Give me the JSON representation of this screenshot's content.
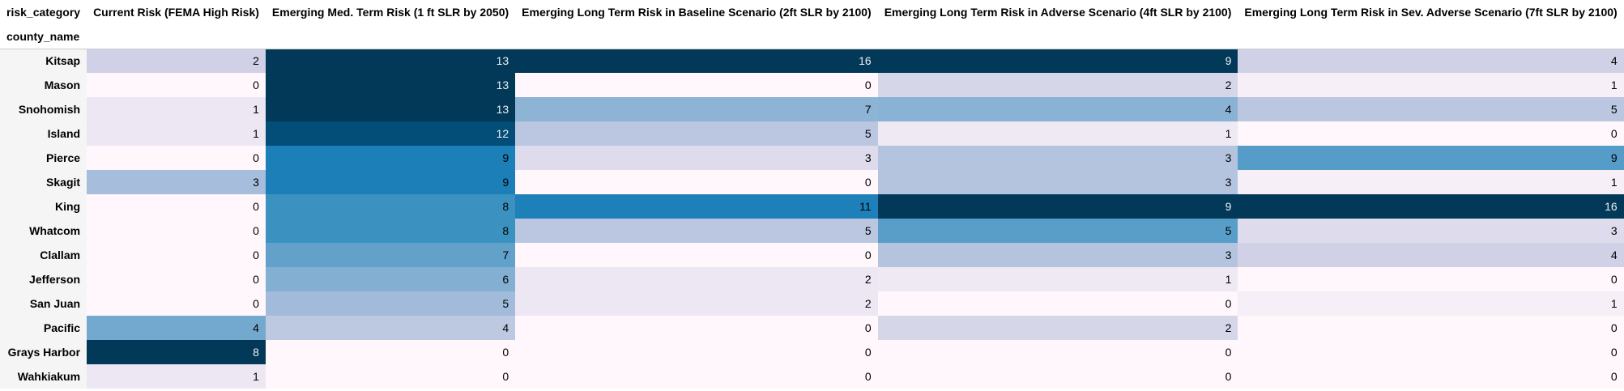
{
  "table": {
    "columns_name_label": "risk_category",
    "index_name_label": "county_name",
    "columns": [
      "Current Risk (FEMA High Risk)",
      "Emerging Med. Term Risk (1 ft SLR by 2050)",
      "Emerging Long Term Risk in Baseline Scenario (2ft SLR by 2100)",
      "Emerging Long Term Risk in Adverse Scenario (4ft SLR by 2100)",
      "Emerging Long Term Risk in Sev. Adverse Scenario (7ft SLR by 2100)"
    ],
    "rows": [
      {
        "county": "Kitsap",
        "values": [
          2,
          13,
          16,
          9,
          4
        ]
      },
      {
        "county": "Mason",
        "values": [
          0,
          13,
          0,
          2,
          1
        ]
      },
      {
        "county": "Snohomish",
        "values": [
          1,
          13,
          7,
          4,
          5
        ]
      },
      {
        "county": "Island",
        "values": [
          1,
          12,
          5,
          1,
          0
        ]
      },
      {
        "county": "Pierce",
        "values": [
          0,
          9,
          3,
          3,
          9
        ]
      },
      {
        "county": "Skagit",
        "values": [
          3,
          9,
          0,
          3,
          1
        ]
      },
      {
        "county": "King",
        "values": [
          0,
          8,
          11,
          9,
          16
        ]
      },
      {
        "county": "Whatcom",
        "values": [
          0,
          8,
          5,
          5,
          3
        ]
      },
      {
        "county": "Clallam",
        "values": [
          0,
          7,
          0,
          3,
          4
        ]
      },
      {
        "county": "Jefferson",
        "values": [
          0,
          6,
          2,
          1,
          0
        ]
      },
      {
        "county": "San Juan",
        "values": [
          0,
          5,
          2,
          0,
          1
        ]
      },
      {
        "county": "Pacific",
        "values": [
          4,
          4,
          0,
          2,
          0
        ]
      },
      {
        "county": "Grays Harbor",
        "values": [
          8,
          0,
          0,
          0,
          0
        ]
      },
      {
        "county": "Wahkiakum",
        "values": [
          1,
          0,
          0,
          0,
          0
        ]
      }
    ]
  },
  "colormap": {
    "name": "PuBu",
    "stops": [
      "#fff7fb",
      "#ece7f2",
      "#d0d1e6",
      "#a6bddb",
      "#74a9cf",
      "#3690c0",
      "#0570b0",
      "#045a8d",
      "#023858"
    ],
    "dark_text_color": "#000000",
    "light_text_color": "#f1f1f1"
  }
}
